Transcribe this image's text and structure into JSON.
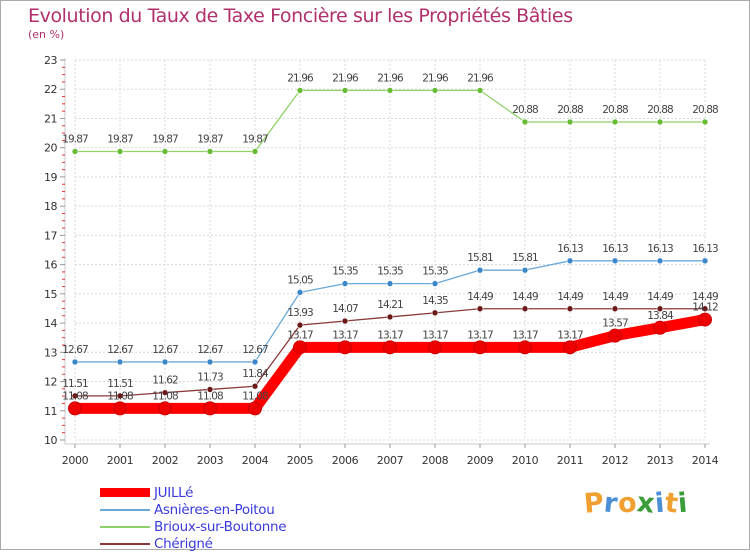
{
  "title": "Evolution du Taux de Taxe Foncière sur les Propriétés Bâties",
  "unit": "(en %)",
  "logo": {
    "letters": [
      "P",
      "r",
      "o",
      "x",
      "i",
      "t",
      "i"
    ],
    "colors": [
      "#f0a030",
      "#4a8fd6",
      "#f0a030",
      "#3a9c3a",
      "#4a8fd6",
      "#f0a030",
      "#3a9c3a"
    ]
  },
  "chart_data": {
    "type": "line",
    "title": "Evolution du Taux de Taxe Foncière sur les Propriétés Bâties",
    "ylabel": "(en %)",
    "xlabel": "",
    "ylim": [
      10,
      23
    ],
    "yticks": [
      10,
      11,
      12,
      13,
      14,
      15,
      16,
      17,
      18,
      19,
      20,
      21,
      22,
      23
    ],
    "categories": [
      "2000",
      "2001",
      "2002",
      "2003",
      "2004",
      "2005",
      "2006",
      "2007",
      "2008",
      "2009",
      "2010",
      "2011",
      "2012",
      "2013",
      "2014"
    ],
    "grid": true,
    "series": [
      {
        "name": "Brioux-sur-Boutonne",
        "color": "#8fd16a",
        "marker": "#66bb33",
        "values": [
          19.87,
          19.87,
          19.87,
          19.87,
          19.87,
          21.96,
          21.96,
          21.96,
          21.96,
          21.96,
          20.88,
          20.88,
          20.88,
          20.88,
          20.88
        ],
        "labels": [
          "19.87",
          "19.87",
          "19.87",
          "19.87",
          "19.87",
          "21.96",
          "21.96",
          "21.96",
          "21.96",
          "21.96",
          "20.88",
          "20.88",
          "20.88",
          "20.88",
          "20.88"
        ]
      },
      {
        "name": "Asnières-en-Poitou",
        "color": "#6aa8d8",
        "marker": "#3a86c8",
        "values": [
          12.67,
          12.67,
          12.67,
          12.67,
          12.67,
          15.05,
          15.35,
          15.35,
          15.35,
          15.81,
          15.81,
          16.13,
          16.13,
          16.13,
          16.13
        ],
        "labels": [
          "12.67",
          "12.67",
          "12.67",
          "12.67",
          "12.67",
          "15.05",
          "15.35",
          "15.35",
          "15.35",
          "15.81",
          "15.81",
          "16.13",
          "16.13",
          "16.13",
          "16.13"
        ]
      },
      {
        "name": "Chérigné",
        "color": "#8a3a3a",
        "marker": "#6a1818",
        "values": [
          11.51,
          11.51,
          11.62,
          11.73,
          11.84,
          13.93,
          14.07,
          14.21,
          14.35,
          14.49,
          14.49,
          14.49,
          14.49,
          14.49,
          14.49
        ],
        "labels": [
          "11.51",
          "11.51",
          "11.62",
          "11.73",
          "11.84",
          "13.93",
          "14.07",
          "14.21",
          "14.35",
          "14.49",
          "14.49",
          "14.49",
          "14.49",
          "14.49",
          "14.49"
        ]
      },
      {
        "name": "JUILLé",
        "color": "#ff0000",
        "marker": "#ee0000",
        "values": [
          11.08,
          11.08,
          11.08,
          11.08,
          11.08,
          13.17,
          13.17,
          13.17,
          13.17,
          13.17,
          13.17,
          13.17,
          13.57,
          13.84,
          14.12
        ],
        "labels": [
          "11.08",
          "11.08",
          "11.08",
          "11.08",
          "11.08",
          "13.17",
          "13.17",
          "13.17",
          "13.17",
          "13.17",
          "13.17",
          "13.17",
          "13.57",
          "13.84",
          "14.12"
        ]
      }
    ],
    "legend": {
      "position": "bottom-left",
      "order": [
        "JUILLé",
        "Asnières-en-Poitou",
        "Brioux-sur-Boutonne",
        "Chérigné"
      ]
    }
  }
}
